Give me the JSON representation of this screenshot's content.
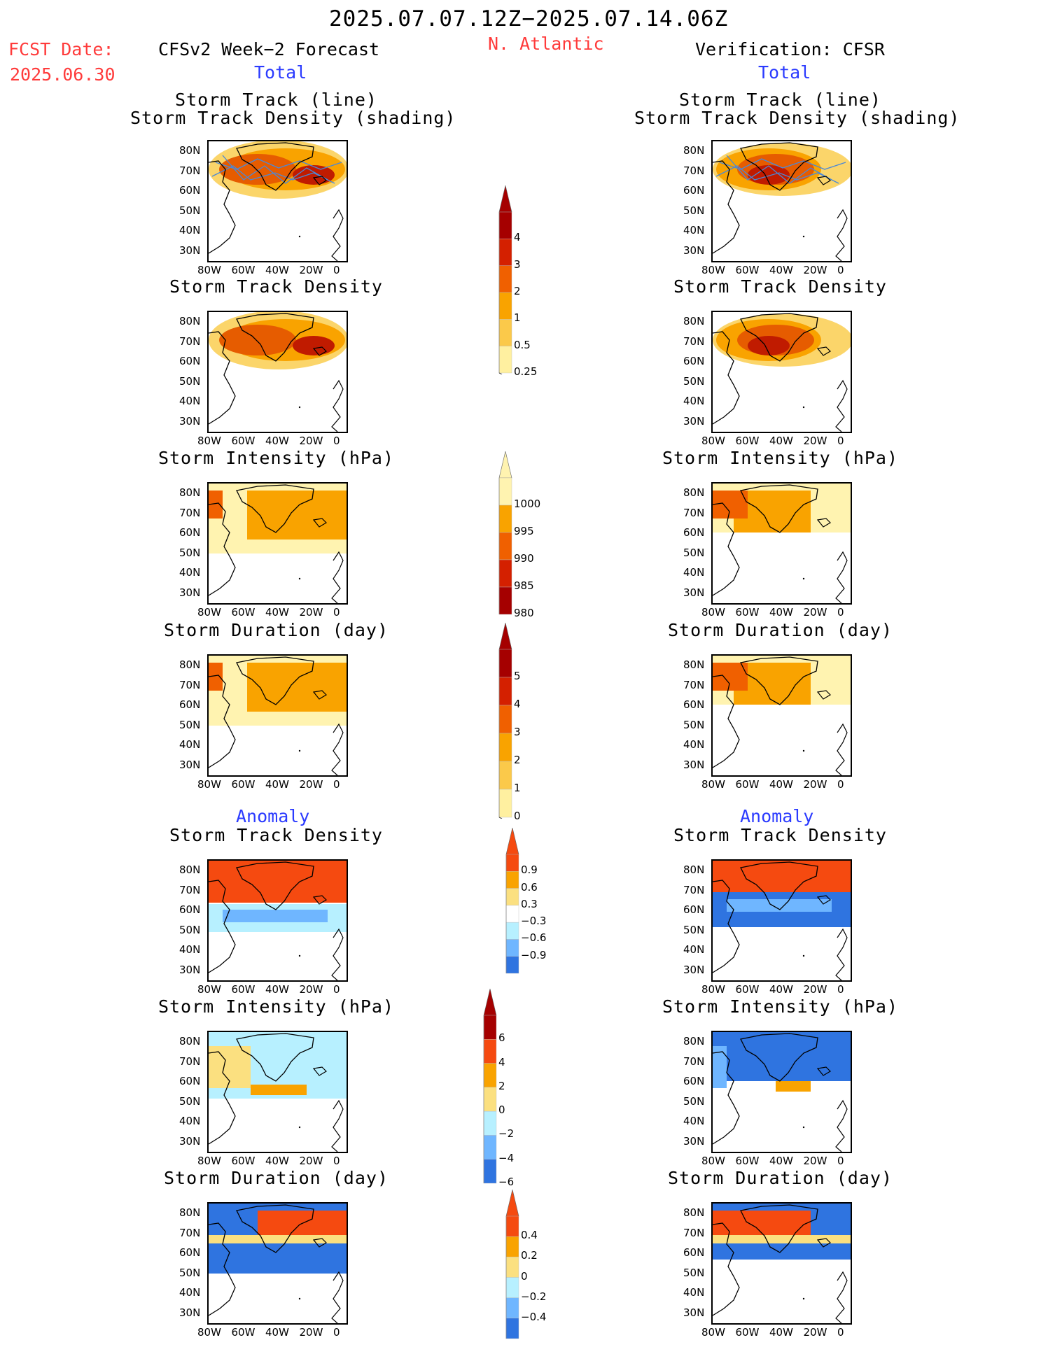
{
  "header": {
    "date_range": "2025.07.07.12Z−2025.07.14.06Z",
    "region": "N. Atlantic",
    "fcst_label": "FCST Date:",
    "fcst_date": "2025.06.30",
    "left_model": "CFSv2 Week−2 Forecast",
    "right_model": "Verification: CFSR",
    "left_section": "Total",
    "right_section": "Total",
    "left_anomaly": "Anomaly",
    "right_anomaly": "Anomaly"
  },
  "axes": {
    "lat_ticks": [
      "80N",
      "70N",
      "60N",
      "50N",
      "40N",
      "30N"
    ],
    "lon_ticks": [
      "80W",
      "60W",
      "40W",
      "20W",
      "0"
    ]
  },
  "panels": {
    "left": [
      {
        "title_line1": "Storm Track (line)",
        "title_line2": "Storm Track Density (shading)"
      },
      {
        "title_line1": "Storm Track Density",
        "title_line2": ""
      },
      {
        "title_line1": "Storm Intensity (hPa)",
        "title_line2": ""
      },
      {
        "title_line1": "Storm Duration (day)",
        "title_line2": ""
      },
      {
        "title_line1": "Storm Track Density",
        "title_line2": ""
      },
      {
        "title_line1": "Storm Intensity (hPa)",
        "title_line2": ""
      },
      {
        "title_line1": "Storm Duration (day)",
        "title_line2": ""
      }
    ],
    "right": [
      {
        "title_line1": "Storm Track (line)",
        "title_line2": "Storm Track Density (shading)"
      },
      {
        "title_line1": "Storm Track Density",
        "title_line2": ""
      },
      {
        "title_line1": "Storm Intensity (hPa)",
        "title_line2": ""
      },
      {
        "title_line1": "Storm Duration (day)",
        "title_line2": ""
      },
      {
        "title_line1": "Storm Track Density",
        "title_line2": ""
      },
      {
        "title_line1": "Storm Intensity (hPa)",
        "title_line2": ""
      },
      {
        "title_line1": "Storm Duration (day)",
        "title_line2": ""
      }
    ]
  },
  "colorbars": [
    {
      "name": "density",
      "labels": [
        "4",
        "3",
        "2",
        "1",
        "0.5",
        "0.25"
      ],
      "colors": [
        "#a50000",
        "#d42000",
        "#f06000",
        "#f9a300",
        "#fbc94a",
        "#fff0a0"
      ]
    },
    {
      "name": "intensity",
      "labels": [
        "1000",
        "995",
        "990",
        "985",
        "980"
      ],
      "colors": [
        "#fff3b0",
        "#f9a300",
        "#f06000",
        "#d42000",
        "#a50000"
      ]
    },
    {
      "name": "duration",
      "labels": [
        "5",
        "4",
        "3",
        "2",
        "1",
        "0"
      ],
      "colors": [
        "#a50000",
        "#d42000",
        "#f06000",
        "#f9a300",
        "#fbc94a",
        "#fff0a0"
      ]
    },
    {
      "name": "density_anom",
      "labels": [
        "0.9",
        "0.6",
        "0.3",
        "−0.3",
        "−0.6",
        "−0.9"
      ],
      "colors": [
        "#f54a10",
        "#f9a300",
        "#fbe080",
        "#ffffff",
        "#b7f0ff",
        "#6fb6ff",
        "#2f74e0"
      ]
    },
    {
      "name": "intensity_anom",
      "labels": [
        "6",
        "4",
        "2",
        "0",
        "−2",
        "−4",
        "−6"
      ],
      "colors": [
        "#a50000",
        "#f54a10",
        "#f9a300",
        "#fbe080",
        "#b7f0ff",
        "#6fb6ff",
        "#2f74e0"
      ]
    },
    {
      "name": "duration_anom",
      "labels": [
        "0.4",
        "0.2",
        "0",
        "−0.2",
        "−0.4"
      ],
      "colors": [
        "#f54a10",
        "#f9a300",
        "#fbe080",
        "#b7f0ff",
        "#6fb6ff",
        "#2f74e0"
      ]
    }
  ]
}
